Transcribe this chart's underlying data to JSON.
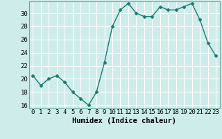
{
  "x": [
    0,
    1,
    2,
    3,
    4,
    5,
    6,
    7,
    8,
    9,
    10,
    11,
    12,
    13,
    14,
    15,
    16,
    17,
    18,
    19,
    20,
    21,
    22,
    23
  ],
  "y": [
    20.5,
    19.0,
    20.0,
    20.5,
    19.5,
    18.0,
    17.0,
    16.0,
    18.0,
    22.5,
    28.0,
    30.5,
    31.5,
    30.0,
    29.5,
    29.5,
    31.0,
    30.5,
    30.5,
    31.0,
    31.5,
    29.0,
    25.5,
    23.5
  ],
  "line_color": "#1a7a6e",
  "marker": "D",
  "marker_size": 2.5,
  "bg_color": "#cdecea",
  "grid_color": "#ffffff",
  "xlabel": "Humidex (Indice chaleur)",
  "ylim": [
    15.5,
    31.8
  ],
  "xlim": [
    -0.5,
    23.5
  ],
  "yticks": [
    16,
    18,
    20,
    22,
    24,
    26,
    28,
    30
  ],
  "xticks": [
    0,
    1,
    2,
    3,
    4,
    5,
    6,
    7,
    8,
    9,
    10,
    11,
    12,
    13,
    14,
    15,
    16,
    17,
    18,
    19,
    20,
    21,
    22,
    23
  ],
  "xtick_labels": [
    "0",
    "1",
    "2",
    "3",
    "4",
    "5",
    "6",
    "7",
    "8",
    "9",
    "10",
    "11",
    "12",
    "13",
    "14",
    "15",
    "16",
    "17",
    "18",
    "19",
    "20",
    "21",
    "22",
    "23"
  ],
  "xlabel_fontsize": 7.5,
  "tick_fontsize": 6.5,
  "line_width": 1.0,
  "spine_color": "#6aada0"
}
